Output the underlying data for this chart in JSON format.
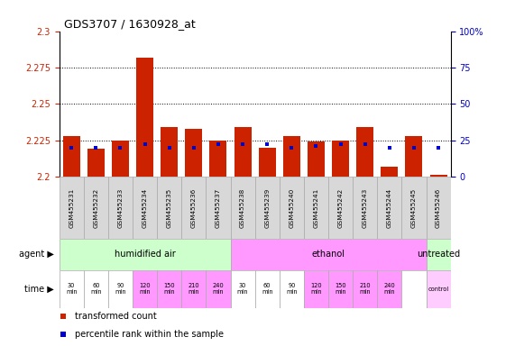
{
  "title": "GDS3707 / 1630928_at",
  "samples": [
    "GSM455231",
    "GSM455232",
    "GSM455233",
    "GSM455234",
    "GSM455235",
    "GSM455236",
    "GSM455237",
    "GSM455238",
    "GSM455239",
    "GSM455240",
    "GSM455241",
    "GSM455242",
    "GSM455243",
    "GSM455244",
    "GSM455245",
    "GSM455246"
  ],
  "red_values": [
    2.228,
    2.219,
    2.225,
    2.282,
    2.234,
    2.233,
    2.225,
    2.234,
    2.22,
    2.228,
    2.224,
    2.225,
    2.234,
    2.207,
    2.228,
    2.201
  ],
  "blue_values_pct": [
    20,
    20,
    20,
    22,
    20,
    20,
    22,
    22,
    22,
    20,
    21,
    22,
    22,
    20,
    20,
    20
  ],
  "y_min": 2.2,
  "y_max": 2.3,
  "y_ticks": [
    2.2,
    2.225,
    2.25,
    2.275,
    2.3
  ],
  "y_right_ticks": [
    0,
    25,
    50,
    75,
    100
  ],
  "agent_groups": [
    {
      "label": "humidified air",
      "start": 0,
      "end": 7,
      "color": "#ccffcc"
    },
    {
      "label": "ethanol",
      "start": 7,
      "end": 15,
      "color": "#ff99ff"
    },
    {
      "label": "untreated",
      "start": 15,
      "end": 16,
      "color": "#ccffcc"
    }
  ],
  "time_labels": [
    "30\nmin",
    "60\nmin",
    "90\nmin",
    "120\nmin",
    "150\nmin",
    "210\nmin",
    "240\nmin",
    "30\nmin",
    "60\nmin",
    "90\nmin",
    "120\nmin",
    "150\nmin",
    "210\nmin",
    "240\nmin",
    "",
    "control"
  ],
  "time_colors": [
    "#ffffff",
    "#ffffff",
    "#ffffff",
    "#ff99ff",
    "#ff99ff",
    "#ff99ff",
    "#ff99ff",
    "#ffffff",
    "#ffffff",
    "#ffffff",
    "#ff99ff",
    "#ff99ff",
    "#ff99ff",
    "#ff99ff",
    "#ffffff",
    "#ffccff"
  ],
  "bar_color": "#cc2200",
  "blue_color": "#0000cc",
  "axis_label_color_left": "#cc2200",
  "axis_label_color_right": "#0000cc",
  "background_color": "#ffffff",
  "legend_items": [
    {
      "color": "#cc2200",
      "label": "transformed count"
    },
    {
      "color": "#0000cc",
      "label": "percentile rank within the sample"
    }
  ]
}
